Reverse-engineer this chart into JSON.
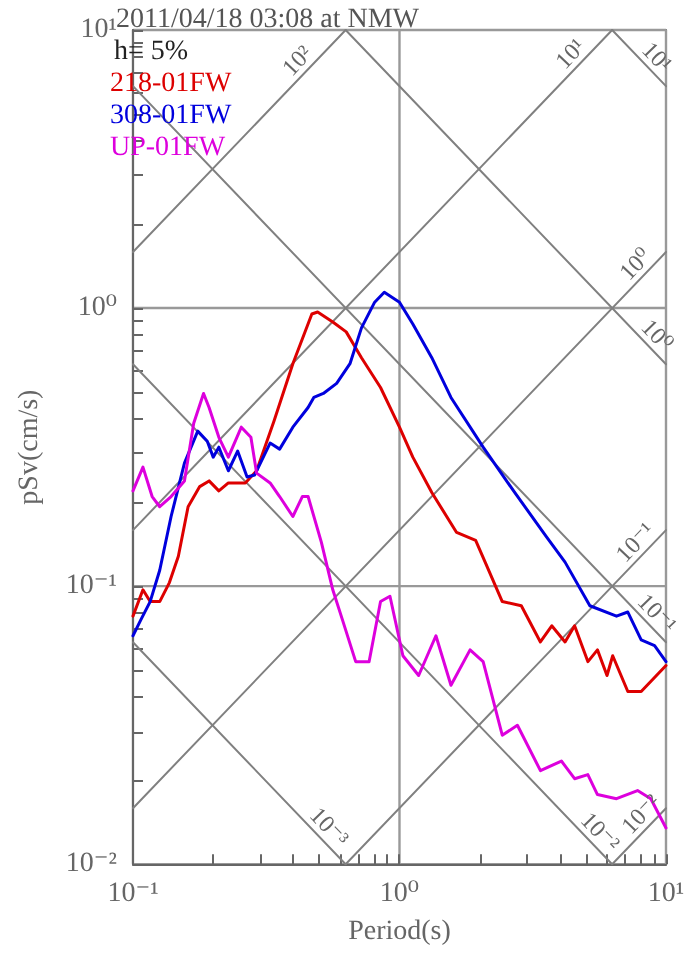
{
  "chart_data": {
    "type": "line",
    "title": "2011/04/18 03:08 at NMW",
    "xlabel": "Period(s)",
    "ylabel": "pSv(cm/s)",
    "annotations": [
      "h= 5%",
      {
        "text": "10²",
        "x": 0.45,
        "y": 7.17
      },
      {
        "text": "10¹",
        "x": 4.77,
        "y": 7.6
      },
      {
        "text": "10¹",
        "x": 8.5,
        "y": 7.39
      },
      {
        "text": "10⁰",
        "x": 8.35,
        "y": 1.33
      },
      {
        "text": "10⁰",
        "x": 8.5,
        "y": 0.739
      },
      {
        "text": "10⁻¹",
        "x": 8.35,
        "y": 0.133
      },
      {
        "text": "10⁻¹",
        "x": 8.5,
        "y": 0.0739
      },
      {
        "text": "10⁻³",
        "x": 0.5,
        "y": 0.0126
      },
      {
        "text": "10⁻²",
        "x": 5.2,
        "y": 0.0121
      },
      {
        "text": "10⁻²",
        "x": 8.77,
        "y": 0.014
      }
    ],
    "log": "xy",
    "grid": true,
    "legend": "top left",
    "marker": "none",
    "line_style": "solid",
    "xlim": [
      0.1,
      10
    ],
    "ylim": [
      0.01,
      10
    ],
    "xticks": [
      {
        "value": 0.1,
        "label": "10⁻¹"
      },
      {
        "value": 0.2,
        "label": null
      },
      {
        "value": 0.3,
        "label": null
      },
      {
        "value": 0.4,
        "label": null
      },
      {
        "value": 0.5,
        "label": null
      },
      {
        "value": 0.6,
        "label": null
      },
      {
        "value": 0.7,
        "label": null
      },
      {
        "value": 0.8,
        "label": null
      },
      {
        "value": 0.9,
        "label": null
      },
      {
        "value": 1,
        "label": "10⁰"
      },
      {
        "value": 2,
        "label": null
      },
      {
        "value": 3,
        "label": null
      },
      {
        "value": 4,
        "label": null
      },
      {
        "value": 5,
        "label": null
      },
      {
        "value": 6,
        "label": null
      },
      {
        "value": 7,
        "label": null
      },
      {
        "value": 8,
        "label": null
      },
      {
        "value": 9,
        "label": null
      },
      {
        "value": 10,
        "label": "10¹"
      }
    ],
    "yticks": [
      {
        "value": 0.01,
        "label": "10⁻²"
      },
      {
        "value": 0.02,
        "label": null
      },
      {
        "value": 0.03,
        "label": null
      },
      {
        "value": 0.04,
        "label": null
      },
      {
        "value": 0.05,
        "label": null
      },
      {
        "value": 0.06,
        "label": null
      },
      {
        "value": 0.07,
        "label": null
      },
      {
        "value": 0.08,
        "label": null
      },
      {
        "value": 0.09,
        "label": null
      },
      {
        "value": 0.1,
        "label": "10⁻¹"
      },
      {
        "value": 0.2,
        "label": null
      },
      {
        "value": 0.3,
        "label": null
      },
      {
        "value": 0.4,
        "label": null
      },
      {
        "value": 0.5,
        "label": null
      },
      {
        "value": 0.6,
        "label": null
      },
      {
        "value": 0.7,
        "label": null
      },
      {
        "value": 0.8,
        "label": null
      },
      {
        "value": 0.9,
        "label": null
      },
      {
        "value": 1,
        "label": "10⁰"
      },
      {
        "value": 2,
        "label": null
      },
      {
        "value": 3,
        "label": null
      },
      {
        "value": 4,
        "label": null
      },
      {
        "value": 5,
        "label": null
      },
      {
        "value": 6,
        "label": null
      },
      {
        "value": 7,
        "label": null
      },
      {
        "value": 8,
        "label": null
      },
      {
        "value": 9,
        "label": null
      },
      {
        "value": 10,
        "label": "10¹"
      }
    ],
    "series": [
      {
        "color": "#808080",
        "x": [
          0.1,
          0.628
        ],
        "values": [
          1.59,
          10
        ]
      },
      {
        "color": "#808080",
        "x": [
          0.1,
          6.28
        ],
        "values": [
          0.159,
          10
        ]
      },
      {
        "color": "#808080",
        "x": [
          0.1,
          10
        ],
        "values": [
          0.0159,
          1.59
        ]
      },
      {
        "color": "#808080",
        "x": [
          0.628,
          10
        ],
        "values": [
          0.01,
          0.159
        ]
      },
      {
        "color": "#808080",
        "x": [
          6.28,
          10
        ],
        "values": [
          0.01,
          0.0159
        ]
      },
      {
        "color": "#808080",
        "x": [
          6.28,
          10
        ],
        "values": [
          10,
          6.28
        ]
      },
      {
        "color": "#808080",
        "x": [
          0.628,
          10
        ],
        "values": [
          10,
          0.628
        ]
      },
      {
        "color": "#808080",
        "x": [
          0.1,
          10
        ],
        "values": [
          6.28,
          0.0628
        ]
      },
      {
        "color": "#808080",
        "x": [
          0.1,
          6.28
        ],
        "values": [
          0.628,
          0.01
        ]
      },
      {
        "color": "#808080",
        "x": [
          0.1,
          0.628
        ],
        "values": [
          0.0628,
          0.01
        ]
      },
      {
        "name": "218-01FW",
        "color": "#dd0000",
        "x": [
          0.1,
          0.109,
          0.116,
          0.126,
          0.137,
          0.148,
          0.161,
          0.178,
          0.193,
          0.21,
          0.228,
          0.264,
          0.291,
          0.338,
          0.398,
          0.469,
          0.493,
          0.562,
          0.631,
          0.72,
          0.849,
          1.0,
          1.122,
          1.322,
          1.638,
          1.931,
          2.096,
          2.43,
          2.865,
          3.378,
          3.727,
          4.181,
          4.54,
          5.094,
          5.531,
          6.007,
          6.31,
          7.19,
          8.07,
          10
        ],
        "values": [
          0.078,
          0.097,
          0.088,
          0.088,
          0.103,
          0.128,
          0.193,
          0.228,
          0.239,
          0.22,
          0.235,
          0.235,
          0.26,
          0.392,
          0.631,
          0.952,
          0.968,
          0.891,
          0.821,
          0.663,
          0.518,
          0.373,
          0.291,
          0.217,
          0.156,
          0.146,
          0.122,
          0.088,
          0.085,
          0.063,
          0.072,
          0.063,
          0.072,
          0.0535,
          0.059,
          0.0477,
          0.0562,
          0.0418,
          0.0418,
          0.0518
        ]
      },
      {
        "name": "308-01FW",
        "color": "#0000dd",
        "x": [
          0.1,
          0.107,
          0.116,
          0.126,
          0.139,
          0.156,
          0.175,
          0.19,
          0.2,
          0.21,
          0.228,
          0.247,
          0.268,
          0.286,
          0.327,
          0.355,
          0.398,
          0.454,
          0.477,
          0.518,
          0.581,
          0.652,
          0.72,
          0.807,
          0.877,
          1.0,
          1.122,
          1.322,
          1.56,
          2.06,
          2.68,
          3.55,
          4.18,
          5.18,
          6.52,
          7.19,
          8.07,
          9.06,
          10
        ],
        "values": [
          0.0663,
          0.0756,
          0.088,
          0.114,
          0.178,
          0.277,
          0.361,
          0.332,
          0.291,
          0.316,
          0.26,
          0.306,
          0.247,
          0.251,
          0.327,
          0.311,
          0.373,
          0.439,
          0.477,
          0.493,
          0.536,
          0.631,
          0.849,
          1.05,
          1.14,
          1.05,
          0.877,
          0.663,
          0.477,
          0.316,
          0.22,
          0.151,
          0.122,
          0.085,
          0.078,
          0.0807,
          0.0641,
          0.0611,
          0.0535
        ]
      },
      {
        "name": "UP-01FW",
        "color": "#dd00dd",
        "x": [
          0.1,
          0.109,
          0.118,
          0.126,
          0.139,
          0.156,
          0.169,
          0.184,
          0.193,
          0.21,
          0.228,
          0.255,
          0.277,
          0.291,
          0.327,
          0.355,
          0.398,
          0.432,
          0.454,
          0.509,
          0.562,
          0.611,
          0.685,
          0.769,
          0.849,
          0.921,
          1.03,
          1.18,
          1.37,
          1.56,
          1.84,
          2.06,
          2.43,
          2.77,
          3.38,
          4.05,
          4.54,
          5.09,
          5.53,
          6.52,
          7.82,
          8.77,
          10
        ],
        "values": [
          0.22,
          0.268,
          0.21,
          0.193,
          0.21,
          0.239,
          0.385,
          0.493,
          0.439,
          0.343,
          0.291,
          0.373,
          0.343,
          0.255,
          0.235,
          0.21,
          0.178,
          0.21,
          0.21,
          0.144,
          0.097,
          0.0756,
          0.0535,
          0.0535,
          0.088,
          0.092,
          0.0562,
          0.0477,
          0.0663,
          0.044,
          0.059,
          0.0535,
          0.0291,
          0.0316,
          0.0217,
          0.0235,
          0.0203,
          0.021,
          0.0178,
          0.0172,
          0.0184,
          0.0172,
          0.0135
        ]
      }
    ]
  }
}
